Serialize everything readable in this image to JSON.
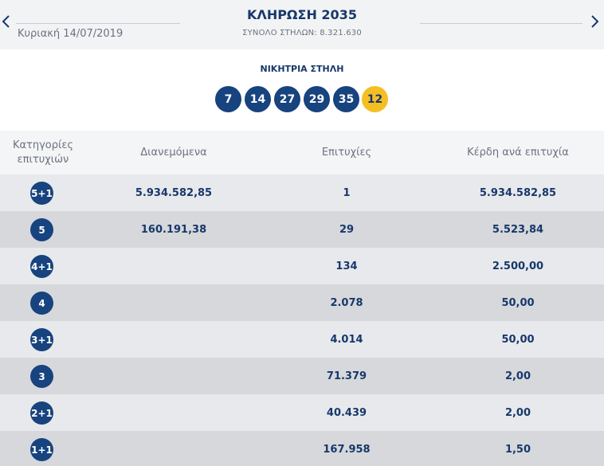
{
  "header": {
    "date": "Κυριακή 14/07/2019",
    "draw_title": "ΚΛΗΡΩΣΗ 2035",
    "total_columns": "ΣΥΝΟΛΟ ΣΤΗΛΩΝ: 8.321.630",
    "prev_icon": "chevron-left-icon",
    "next_icon": "chevron-right-icon"
  },
  "winning": {
    "label": "ΝΙΚΗΤΡΙΑ ΣΤΗΛΗ",
    "numbers": [
      "7",
      "14",
      "27",
      "29",
      "35"
    ],
    "bonus": "12"
  },
  "table": {
    "headers": {
      "category_line1": "Κατηγορίες",
      "category_line2": "επιτυχιών",
      "distributed": "Διανεμόμενα",
      "winners": "Επιτυχίες",
      "prize": "Κέρδη ανά επιτυχία"
    },
    "rows": [
      {
        "category": "5+1",
        "distributed": "5.934.582,85",
        "winners": "1",
        "prize": "5.934.582,85"
      },
      {
        "category": "5",
        "distributed": "160.191,38",
        "winners": "29",
        "prize": "5.523,84"
      },
      {
        "category": "4+1",
        "distributed": "",
        "winners": "134",
        "prize": "2.500,00"
      },
      {
        "category": "4",
        "distributed": "",
        "winners": "2.078",
        "prize": "50,00"
      },
      {
        "category": "3+1",
        "distributed": "",
        "winners": "4.014",
        "prize": "50,00"
      },
      {
        "category": "3",
        "distributed": "",
        "winners": "71.379",
        "prize": "2,00"
      },
      {
        "category": "2+1",
        "distributed": "",
        "winners": "40.439",
        "prize": "2,00"
      },
      {
        "category": "1+1",
        "distributed": "",
        "winners": "167.958",
        "prize": "1,50"
      }
    ]
  },
  "colors": {
    "navy": "#17437f",
    "bonus_yellow": "#f5bf24",
    "row_light": "#e8e9ec",
    "row_dark": "#d7d8db"
  }
}
